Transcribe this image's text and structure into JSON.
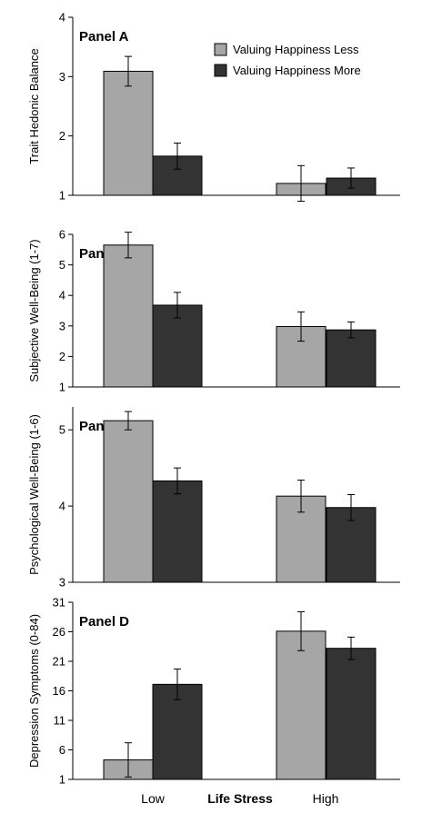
{
  "x_axis": {
    "categories": [
      "Low",
      "High"
    ],
    "title": "Life Stress"
  },
  "legend": {
    "position": "top-right (Panel A)",
    "items": [
      {
        "label": "Valuing Happiness Less",
        "color": "#a6a6a6"
      },
      {
        "label": "Valuing Happiness More",
        "color": "#333333"
      }
    ]
  },
  "chart_data": [
    {
      "type": "bar",
      "title": "Panel A",
      "ylabel": "Trait Hedonic Balance",
      "ylim": [
        1,
        4
      ],
      "yticks": [
        1,
        2,
        3,
        4
      ],
      "categories": [
        "Low",
        "High"
      ],
      "series": [
        {
          "name": "Valuing Happiness Less",
          "values": [
            3.09,
            1.2
          ],
          "errors": [
            0.25,
            0.3
          ]
        },
        {
          "name": "Valuing Happiness More",
          "values": [
            1.66,
            1.29
          ],
          "errors": [
            0.22,
            0.17
          ]
        }
      ]
    },
    {
      "type": "bar",
      "title": "Panel B",
      "ylabel": "Subjective Well-Being (1-7)",
      "ylim": [
        1,
        6
      ],
      "yticks": [
        1,
        2,
        3,
        4,
        5,
        6
      ],
      "categories": [
        "Low",
        "High"
      ],
      "series": [
        {
          "name": "Valuing Happiness Less",
          "values": [
            5.65,
            2.98
          ],
          "errors": [
            0.42,
            0.48
          ]
        },
        {
          "name": "Valuing Happiness More",
          "values": [
            3.68,
            2.87
          ],
          "errors": [
            0.42,
            0.26
          ]
        }
      ]
    },
    {
      "type": "bar",
      "title": "Panel C",
      "ylabel": "Psychological Well-Being (1-6)",
      "ylim": [
        3,
        5.3
      ],
      "yticks": [
        3,
        4,
        5
      ],
      "categories": [
        "Low",
        "High"
      ],
      "series": [
        {
          "name": "Valuing Happiness Less",
          "values": [
            5.12,
            4.13
          ],
          "errors": [
            0.12,
            0.21
          ]
        },
        {
          "name": "Valuing Happiness More",
          "values": [
            4.33,
            3.98
          ],
          "errors": [
            0.17,
            0.17
          ]
        }
      ]
    },
    {
      "type": "bar",
      "title": "Panel D",
      "ylabel": "Depression Symptoms (0-84)",
      "ylim": [
        1,
        31
      ],
      "yticks": [
        1,
        6,
        11,
        16,
        21,
        26,
        31
      ],
      "categories": [
        "Low",
        "High"
      ],
      "series": [
        {
          "name": "Valuing Happiness Less",
          "values": [
            4.3,
            26.1
          ],
          "errors": [
            2.9,
            3.3
          ]
        },
        {
          "name": "Valuing Happiness More",
          "values": [
            17.1,
            23.2
          ],
          "errors": [
            2.6,
            1.9
          ]
        }
      ]
    }
  ]
}
